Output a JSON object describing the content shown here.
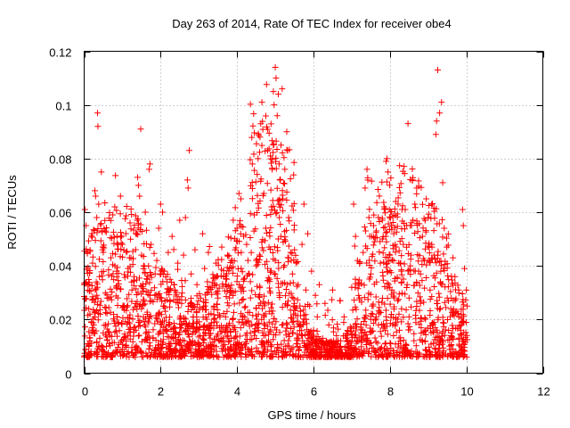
{
  "chart_data": {
    "type": "scatter",
    "title": "Day 263 of 2014, Rate Of TEC Index for receiver obe4",
    "xlabel": "GPS time / hours",
    "ylabel": "ROTI / TECUs",
    "xlim": [
      0,
      12
    ],
    "ylim": [
      0,
      0.12
    ],
    "x_ticks": [
      0,
      2,
      4,
      6,
      8,
      10,
      12
    ],
    "x_tick_labels": [
      "0",
      "2",
      "4",
      "6",
      "8",
      "10",
      "12"
    ],
    "y_ticks": [
      0,
      0.02,
      0.04,
      0.06,
      0.08,
      0.1,
      0.12
    ],
    "y_tick_labels": [
      "0",
      "0.02",
      "0.04",
      "0.06",
      "0.08",
      "0.1",
      "0.12"
    ],
    "grid": true,
    "marker": "+",
    "color": "#ff0000",
    "series": [
      {
        "name": "ROTI",
        "points": [
          [
            0.02,
            0.061
          ],
          [
            0.05,
            0.055
          ],
          [
            0.08,
            0.045
          ],
          [
            0.1,
            0.033
          ],
          [
            0.12,
            0.024
          ],
          [
            0.15,
            0.012
          ],
          [
            0.18,
            0.008
          ],
          [
            0.2,
            0.052
          ],
          [
            0.22,
            0.041
          ],
          [
            0.25,
            0.018
          ],
          [
            0.28,
            0.068
          ],
          [
            0.3,
            0.066
          ],
          [
            0.33,
            0.058
          ],
          [
            0.35,
            0.097
          ],
          [
            0.36,
            0.092
          ],
          [
            0.38,
            0.063
          ],
          [
            0.4,
            0.036
          ],
          [
            0.42,
            0.022
          ],
          [
            0.45,
            0.075
          ],
          [
            0.48,
            0.046
          ],
          [
            0.5,
            0.015
          ],
          [
            0.55,
            0.053
          ],
          [
            0.6,
            0.028
          ],
          [
            0.65,
            0.011
          ],
          [
            0.7,
            0.043
          ],
          [
            0.75,
            0.059
          ],
          [
            0.8,
            0.062
          ],
          [
            0.85,
            0.038
          ],
          [
            0.9,
            0.019
          ],
          [
            0.95,
            0.066
          ],
          [
            1.0,
            0.048
          ],
          [
            1.05,
            0.025
          ],
          [
            1.1,
            0.012
          ],
          [
            1.15,
            0.039
          ],
          [
            1.2,
            0.056
          ],
          [
            1.25,
            0.031
          ],
          [
            1.3,
            0.017
          ],
          [
            1.35,
            0.052
          ],
          [
            1.4,
            0.073
          ],
          [
            1.42,
            0.07
          ],
          [
            1.45,
            0.066
          ],
          [
            1.48,
            0.091
          ],
          [
            1.5,
            0.044
          ],
          [
            1.55,
            0.021
          ],
          [
            1.6,
            0.06
          ],
          [
            1.65,
            0.035
          ],
          [
            1.7,
            0.076
          ],
          [
            1.72,
            0.078
          ],
          [
            1.75,
            0.048
          ],
          [
            1.8,
            0.013
          ],
          [
            1.85,
            0.029
          ],
          [
            1.9,
            0.042
          ],
          [
            1.95,
            0.054
          ],
          [
            2.0,
            0.063
          ],
          [
            2.05,
            0.06
          ],
          [
            2.1,
            0.038
          ],
          [
            2.15,
            0.016
          ],
          [
            2.2,
            0.045
          ],
          [
            2.25,
            0.027
          ],
          [
            2.3,
            0.051
          ],
          [
            2.35,
            0.033
          ],
          [
            2.4,
            0.012
          ],
          [
            2.45,
            0.041
          ],
          [
            2.5,
            0.057
          ],
          [
            2.55,
            0.026
          ],
          [
            2.6,
            0.044
          ],
          [
            2.65,
            0.058
          ],
          [
            2.7,
            0.072
          ],
          [
            2.72,
            0.069
          ],
          [
            2.75,
            0.083
          ],
          [
            2.8,
            0.037
          ],
          [
            2.85,
            0.021
          ],
          [
            2.9,
            0.046
          ],
          [
            2.95,
            0.033
          ],
          [
            3.0,
            0.011
          ],
          [
            3.05,
            0.028
          ],
          [
            3.1,
            0.052
          ],
          [
            3.15,
            0.039
          ],
          [
            3.2,
            0.017
          ],
          [
            3.25,
            0.045
          ],
          [
            3.3,
            0.008
          ],
          [
            3.35,
            0.032
          ],
          [
            3.4,
            0.019
          ],
          [
            3.45,
            0.041
          ],
          [
            3.5,
            0.028
          ],
          [
            3.55,
            0.012
          ],
          [
            3.6,
            0.047
          ],
          [
            3.65,
            0.036
          ],
          [
            3.7,
            0.021
          ],
          [
            3.75,
            0.044
          ],
          [
            3.8,
            0.039
          ],
          [
            3.85,
            0.013
          ],
          [
            3.9,
            0.057
          ],
          [
            3.95,
            0.046
          ],
          [
            4.0,
            0.054
          ],
          [
            4.05,
            0.067
          ],
          [
            4.1,
            0.065
          ],
          [
            4.15,
            0.032
          ],
          [
            4.2,
            0.021
          ],
          [
            4.25,
            0.048
          ],
          [
            4.3,
            0.037
          ],
          [
            4.35,
            0.015
          ],
          [
            4.4,
            0.078
          ],
          [
            4.45,
            0.059
          ],
          [
            4.5,
            0.042
          ],
          [
            4.55,
            0.08
          ],
          [
            4.6,
            0.088
          ],
          [
            4.62,
            0.093
          ],
          [
            4.65,
            0.101
          ],
          [
            4.7,
            0.067
          ],
          [
            4.75,
            0.054
          ],
          [
            4.8,
            0.083
          ],
          [
            4.85,
            0.035
          ],
          [
            4.9,
            0.062
          ],
          [
            4.95,
            0.105
          ],
          [
            4.97,
            0.1
          ],
          [
            5.0,
            0.114
          ],
          [
            5.02,
            0.11
          ],
          [
            5.05,
            0.096
          ],
          [
            5.08,
            0.104
          ],
          [
            5.1,
            0.078
          ],
          [
            5.12,
            0.072
          ],
          [
            5.15,
            0.085
          ],
          [
            5.18,
            0.106
          ],
          [
            5.2,
            0.065
          ],
          [
            5.25,
            0.076
          ],
          [
            5.3,
            0.09
          ],
          [
            5.32,
            0.083
          ],
          [
            5.35,
            0.058
          ],
          [
            5.4,
            0.045
          ],
          [
            5.45,
            0.037
          ],
          [
            5.5,
            0.026
          ],
          [
            5.55,
            0.041
          ],
          [
            5.6,
            0.033
          ],
          [
            5.65,
            0.018
          ],
          [
            5.7,
            0.048
          ],
          [
            5.75,
            0.063
          ],
          [
            5.8,
            0.031
          ],
          [
            5.85,
            0.052
          ],
          [
            5.9,
            0.025
          ],
          [
            5.95,
            0.038
          ],
          [
            6.0,
            0.016
          ],
          [
            6.05,
            0.029
          ],
          [
            6.1,
            0.021
          ],
          [
            6.15,
            0.033
          ],
          [
            6.2,
            0.012
          ],
          [
            6.3,
            0.026
          ],
          [
            6.4,
            0.018
          ],
          [
            6.5,
            0.031
          ],
          [
            6.6,
            0.014
          ],
          [
            6.7,
            0.027
          ],
          [
            6.8,
            0.021
          ],
          [
            6.9,
            0.012
          ],
          [
            7.0,
            0.032
          ],
          [
            7.05,
            0.063
          ],
          [
            7.1,
            0.051
          ],
          [
            7.15,
            0.042
          ],
          [
            7.2,
            0.028
          ],
          [
            7.25,
            0.015
          ],
          [
            7.3,
            0.045
          ],
          [
            7.35,
            0.069
          ],
          [
            7.4,
            0.076
          ],
          [
            7.42,
            0.072
          ],
          [
            7.45,
            0.058
          ],
          [
            7.5,
            0.037
          ],
          [
            7.55,
            0.022
          ],
          [
            7.6,
            0.049
          ],
          [
            7.65,
            0.034
          ],
          [
            7.7,
            0.018
          ],
          [
            7.75,
            0.041
          ],
          [
            7.8,
            0.057
          ],
          [
            7.85,
            0.062
          ],
          [
            7.9,
            0.079
          ],
          [
            7.92,
            0.08
          ],
          [
            7.95,
            0.075
          ],
          [
            8.0,
            0.044
          ],
          [
            8.05,
            0.031
          ],
          [
            8.1,
            0.052
          ],
          [
            8.15,
            0.064
          ],
          [
            8.2,
            0.027
          ],
          [
            8.25,
            0.016
          ],
          [
            8.3,
            0.038
          ],
          [
            8.35,
            0.048
          ],
          [
            8.4,
            0.061
          ],
          [
            8.45,
            0.033
          ],
          [
            8.5,
            0.021
          ],
          [
            8.55,
            0.044
          ],
          [
            8.6,
            0.057
          ],
          [
            8.65,
            0.063
          ],
          [
            8.7,
            0.069
          ],
          [
            8.75,
            0.038
          ],
          [
            8.8,
            0.026
          ],
          [
            8.85,
            0.051
          ],
          [
            8.9,
            0.042
          ],
          [
            8.95,
            0.065
          ],
          [
            9.0,
            0.058
          ],
          [
            9.05,
            0.031
          ],
          [
            9.1,
            0.047
          ],
          [
            9.15,
            0.019
          ],
          [
            9.2,
            0.089
          ],
          [
            9.22,
            0.094
          ],
          [
            9.25,
            0.113
          ],
          [
            9.3,
            0.097
          ],
          [
            9.35,
            0.101
          ],
          [
            9.38,
            0.071
          ],
          [
            9.4,
            0.039
          ],
          [
            9.5,
            0.028
          ],
          [
            9.6,
            0.014
          ],
          [
            9.65,
            0.043
          ],
          [
            9.7,
            0.036
          ],
          [
            9.75,
            0.023
          ],
          [
            9.8,
            0.031
          ],
          [
            9.85,
            0.016
          ],
          [
            9.9,
            0.061
          ],
          [
            9.92,
            0.055
          ],
          [
            9.95,
            0.039
          ],
          [
            10.0,
            0.031
          ],
          [
            10.02,
            0.025
          ]
        ]
      }
    ]
  }
}
